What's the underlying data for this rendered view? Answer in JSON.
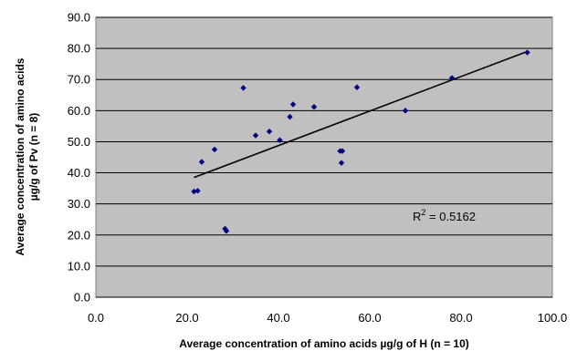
{
  "chart_data": {
    "type": "scatter",
    "title": "",
    "xlabel": "Average concentration of amino acids µg/g of H (n = 10)",
    "ylabel_lines": [
      "Average concentration of amino acids",
      "µg/g of Pv (n = 8)"
    ],
    "xlim": [
      0,
      100
    ],
    "ylim": [
      0,
      90
    ],
    "xticks": [
      "0.0",
      "20.0",
      "40.0",
      "60.0",
      "80.0",
      "100.0"
    ],
    "yticks": [
      "0.0",
      "10.0",
      "20.0",
      "30.0",
      "40.0",
      "50.0",
      "60.0",
      "70.0",
      "80.0",
      "90.0"
    ],
    "grid": "horizontal",
    "legend": "none",
    "colors": {
      "plot_bg": "#c0c0c0",
      "marker": "#000080",
      "trendline": "#000000",
      "grid": "#000000"
    },
    "series": [
      {
        "x": [
          21.5,
          22.3,
          23.2,
          26.0,
          28.3,
          28.6,
          32.3,
          35.0,
          38.0,
          40.3,
          42.5,
          43.2,
          47.8,
          53.5,
          53.8,
          54.0,
          57.2,
          67.8,
          78.0,
          94.5
        ],
        "y": [
          34.0,
          34.2,
          43.5,
          47.5,
          22.0,
          21.3,
          67.3,
          52.0,
          53.3,
          50.5,
          58.0,
          62.0,
          61.2,
          47.0,
          43.2,
          47.0,
          67.5,
          60.0,
          70.5,
          78.7
        ]
      }
    ],
    "trendline": {
      "x": [
        21.5,
        94.5
      ],
      "y": [
        38.5,
        79.0
      ]
    },
    "annotation": {
      "label": "R",
      "sup": "2",
      "rest": " = 0.5162"
    }
  }
}
